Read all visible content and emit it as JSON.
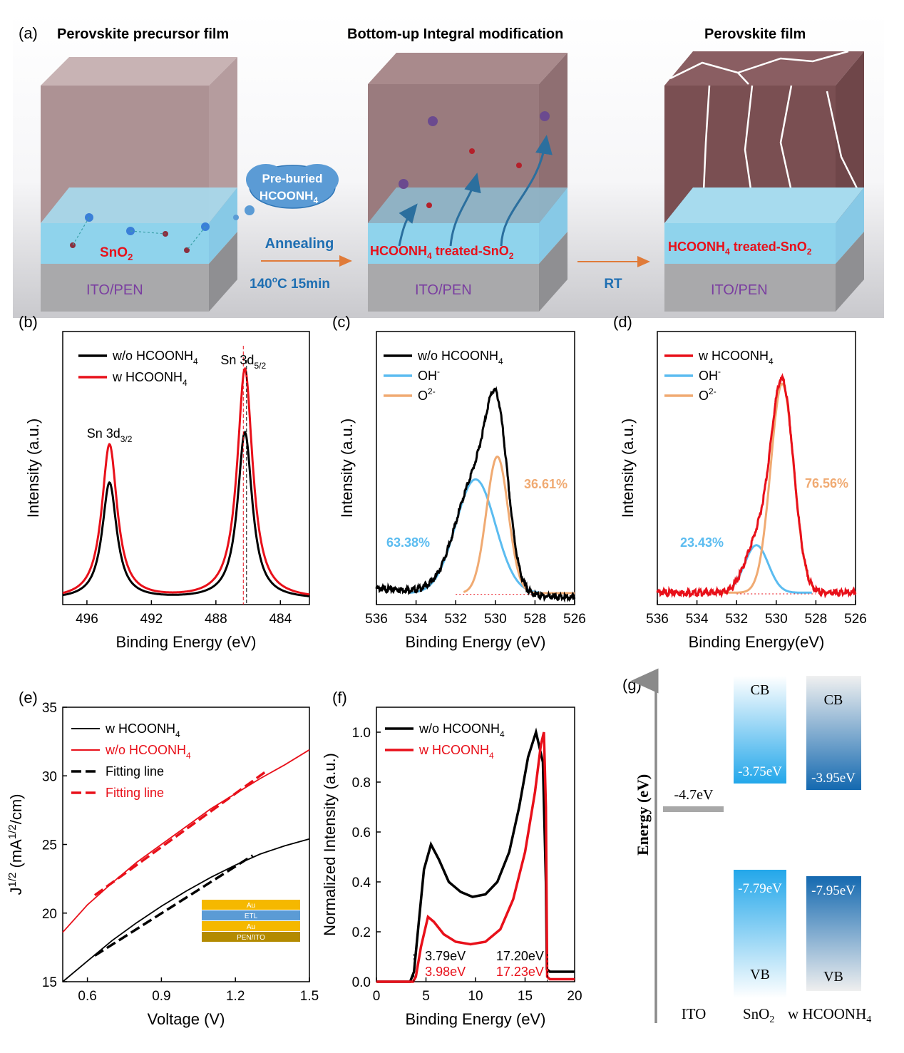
{
  "panel_a": {
    "letter": "(a)",
    "title_left": "Perovskite precursor film",
    "title_mid": "Bottom-up Integral modification",
    "title_right": "Perovskite film",
    "sno2_label": "SnO",
    "sno2_sub": "2",
    "ito_label": "ITO/PEN",
    "cloud_line1": "Pre-buried",
    "cloud_line2": "HCOONH",
    "cloud_sub": "4",
    "annealing": "Annealing",
    "temp_sup": "o",
    "temp_pre": "140",
    "temp_post": "C  15min",
    "rt": "RT",
    "treated_pre": "HCOONH",
    "treated_sub4": "4",
    "treated_mid": " treated-SnO",
    "treated_sub2": "2",
    "colors": {
      "pvk": "#9f8183",
      "pvk_final": "#7a4f52",
      "sno2": "#8fd3ec",
      "ito": "#a9a9ab",
      "arrow": "#e07b39",
      "label_blue": "#1f6fb2",
      "label_red": "#e8101a",
      "ito_text": "#7a3ea0"
    }
  },
  "chart_data": [
    {
      "id": "b",
      "type": "line",
      "letter": "(b)",
      "xlabel": "Binding Energy (eV)",
      "ylabel": "Intensity (a.u.)",
      "xlim": [
        497.5,
        482.2
      ],
      "ylim": [
        0,
        1.08
      ],
      "xticks": [
        496,
        492,
        488,
        484
      ],
      "series": [
        {
          "name": "w/o HCOONH4",
          "legend_pre": "w/o HCOONH",
          "legend_sub": "4",
          "color": "#000000",
          "peaks": [
            [
              494.6,
              0.46,
              0.55
            ],
            [
              486.2,
              0.66,
              0.55
            ]
          ],
          "baseline": 0.02
        },
        {
          "name": "w HCOONH4",
          "legend_pre": "w  HCOONH",
          "legend_sub": "4",
          "color": "#e8101a",
          "peaks": [
            [
              494.6,
              0.61,
              0.58
            ],
            [
              486.2,
              0.91,
              0.58
            ]
          ],
          "baseline": 0.02
        }
      ],
      "peak_labels": [
        {
          "pre": "Sn 3d",
          "sub": "3/2",
          "x": 494.6,
          "y": 0.66
        },
        {
          "pre": "Sn 3d",
          "sub": "5/2",
          "x": 486.3,
          "y": 0.95
        }
      ]
    },
    {
      "id": "c",
      "type": "line",
      "letter": "(c)",
      "xlabel": "Binding Energy (eV)",
      "ylabel": "Intensity (a.u.)",
      "xlim": [
        536,
        526
      ],
      "ylim": [
        0,
        1.2
      ],
      "xticks": [
        536,
        534,
        532,
        530,
        528,
        526
      ],
      "series": [
        {
          "name": "w/o HCOONH4",
          "legend_pre": "w/o HCOONH",
          "legend_sub": "4",
          "color": "#000000",
          "role": "total"
        },
        {
          "name": "OH-",
          "legend_pre": "OH",
          "legend_sup": "-",
          "color": "#5bbcf0",
          "center": 531.0,
          "amp": 0.5,
          "sigma": 1.0
        },
        {
          "name": "O2-",
          "legend_pre": "O",
          "legend_sup": "2-",
          "color": "#f0aa72",
          "center": 529.9,
          "amp": 0.6,
          "sigma": 0.55
        }
      ],
      "annotations": [
        {
          "text": "36.61%",
          "color": "#f0aa72"
        },
        {
          "text": "63.38%",
          "color": "#5bbcf0"
        }
      ]
    },
    {
      "id": "d",
      "type": "line",
      "letter": "(d)",
      "xlabel": "Binding Energy(eV)",
      "ylabel": "Intensity (a.u.)",
      "xlim": [
        536,
        526
      ],
      "ylim": [
        0,
        1.15
      ],
      "xticks": [
        536,
        534,
        532,
        530,
        528,
        526
      ],
      "series": [
        {
          "name": "w HCOONH4",
          "legend_pre": "w  HCOONH",
          "legend_sub": "4",
          "color": "#e8101a",
          "role": "total"
        },
        {
          "name": "OH-",
          "legend_pre": "OH",
          "legend_sup": "-",
          "color": "#5bbcf0",
          "center": 531.0,
          "amp": 0.2,
          "sigma": 0.6
        },
        {
          "name": "O2-",
          "legend_pre": "O",
          "legend_sup": "2-",
          "color": "#f0aa72",
          "center": 529.7,
          "amp": 0.88,
          "sigma": 0.58
        }
      ],
      "annotations": [
        {
          "text": "76.56%",
          "color": "#f0aa72"
        },
        {
          "text": "23.43%",
          "color": "#5bbcf0"
        }
      ]
    },
    {
      "id": "e",
      "type": "line",
      "letter": "(e)",
      "xlabel": "Voltage (V)",
      "ylabel_pre": "J",
      "ylabel_sup1": "1/2",
      "ylabel_mid": " (mA",
      "ylabel_sup2": "1/2",
      "ylabel_post": "/cm)",
      "xlim": [
        0.5,
        1.5
      ],
      "ylim": [
        15,
        35
      ],
      "xticks": [
        0.6,
        0.9,
        1.2,
        1.5
      ],
      "xtick_labels": [
        "0.6",
        "0.9",
        "1.2",
        "1.5"
      ],
      "yticks": [
        15,
        20,
        25,
        30,
        35
      ],
      "ytick_labels": [
        "15",
        "20",
        "25",
        "30",
        "35"
      ],
      "series": [
        {
          "name": "w HCOONH4",
          "legend_pre": "w HCOONH",
          "legend_sub": "4",
          "color": "#000000",
          "x": [
            0.5,
            0.6,
            0.7,
            0.8,
            0.9,
            1.0,
            1.1,
            1.2,
            1.3,
            1.4,
            1.5
          ],
          "y": [
            14.6,
            16.5,
            18.0,
            19.3,
            20.5,
            21.6,
            22.6,
            23.5,
            24.3,
            24.9,
            25.4
          ]
        },
        {
          "name": "w/o HCOONH4",
          "legend_pre": "w/o HCOONH",
          "legend_sub": "4",
          "color": "#e8101a",
          "x": [
            0.5,
            0.6,
            0.7,
            0.8,
            0.9,
            1.0,
            1.1,
            1.2,
            1.3,
            1.4,
            1.5
          ],
          "y": [
            18.6,
            20.6,
            22.2,
            23.7,
            25.0,
            26.3,
            27.6,
            28.7,
            29.8,
            30.8,
            31.9
          ]
        },
        {
          "name": "Fitting line",
          "legend_pre": "Fitting line",
          "color": "#000000",
          "dash": true,
          "x": [
            0.63,
            1.27
          ],
          "y": [
            16.9,
            24.2
          ]
        },
        {
          "name": "Fitting line",
          "legend_pre": "Fitting line",
          "color": "#e8101a",
          "dash": true,
          "x": [
            0.63,
            1.33
          ],
          "y": [
            21.3,
            30.4
          ]
        }
      ],
      "inset_layers": [
        "Au",
        "ETL",
        "Au",
        "PEN/ITO"
      ]
    },
    {
      "id": "f",
      "type": "line",
      "letter": "(f)",
      "xlabel": "Binding Energy (eV)",
      "ylabel": "Normalized Intensity (a.u.)",
      "xlim": [
        0,
        20
      ],
      "ylim": [
        0,
        1.1
      ],
      "xticks": [
        0,
        5,
        10,
        15,
        20
      ],
      "xtick_labels": [
        "0",
        "5",
        "10",
        "15",
        "20"
      ],
      "yticks": [
        0.0,
        0.2,
        0.4,
        0.6,
        0.8,
        1.0
      ],
      "ytick_labels": [
        "0.0",
        "0.2",
        "0.4",
        "0.6",
        "0.8",
        "1.0"
      ],
      "series": [
        {
          "name": "w/o HCOONH4",
          "legend_pre": "w/o HCOONH",
          "legend_sub": "4",
          "color": "#000000",
          "x": [
            0,
            3.4,
            3.79,
            4.3,
            4.8,
            5.5,
            6.3,
            7.3,
            8.5,
            9.7,
            11.0,
            12.2,
            13.4,
            14.4,
            15.3,
            16.1,
            16.8,
            17.1,
            17.2,
            17.5,
            18.5,
            20
          ],
          "y": [
            0,
            0,
            0.04,
            0.25,
            0.45,
            0.55,
            0.49,
            0.4,
            0.36,
            0.34,
            0.35,
            0.4,
            0.52,
            0.7,
            0.9,
            1.0,
            0.88,
            0.4,
            0.05,
            0.04,
            0.04,
            0.04
          ]
        },
        {
          "name": "w HCOONH4",
          "legend_pre": "w HCOONH",
          "legend_sub": "4",
          "color": "#e8101a",
          "x": [
            0,
            3.7,
            3.98,
            4.5,
            5.2,
            5.8,
            6.8,
            8.0,
            9.5,
            11.0,
            12.5,
            13.8,
            15.0,
            16.0,
            16.6,
            16.9,
            17.1,
            17.23,
            17.5,
            18.5,
            20
          ],
          "y": [
            0,
            0,
            0.02,
            0.14,
            0.26,
            0.24,
            0.19,
            0.16,
            0.15,
            0.16,
            0.21,
            0.33,
            0.52,
            0.76,
            0.95,
            1.0,
            0.7,
            0.02,
            0.01,
            0.01,
            0.01
          ]
        }
      ],
      "onset_labels": [
        {
          "text": "3.79eV",
          "color": "#000000"
        },
        {
          "text": "3.98eV",
          "color": "#e8101a"
        },
        {
          "text": "17.20eV",
          "color": "#000000"
        },
        {
          "text": "17.23eV",
          "color": "#e8101a"
        }
      ]
    }
  ],
  "panel_g": {
    "letter": "(g)",
    "axis_label": "Energy (eV)",
    "ito_level": "-4.7eV",
    "sno2_cb": "-3.75eV",
    "sno2_vb": "-7.79eV",
    "w_cb": "-3.95eV",
    "w_vb": "-7.95eV",
    "cb": "CB",
    "vb": "VB",
    "x_ito": "ITO",
    "x_sno2_pre": "SnO",
    "x_sno2_sub": "2",
    "x_w_pre": "w HCOONH",
    "x_w_sub": "4",
    "colors": {
      "sno2": "#2aa6e8",
      "w": "#1a6db3",
      "ito": "#a8a8a8"
    }
  }
}
